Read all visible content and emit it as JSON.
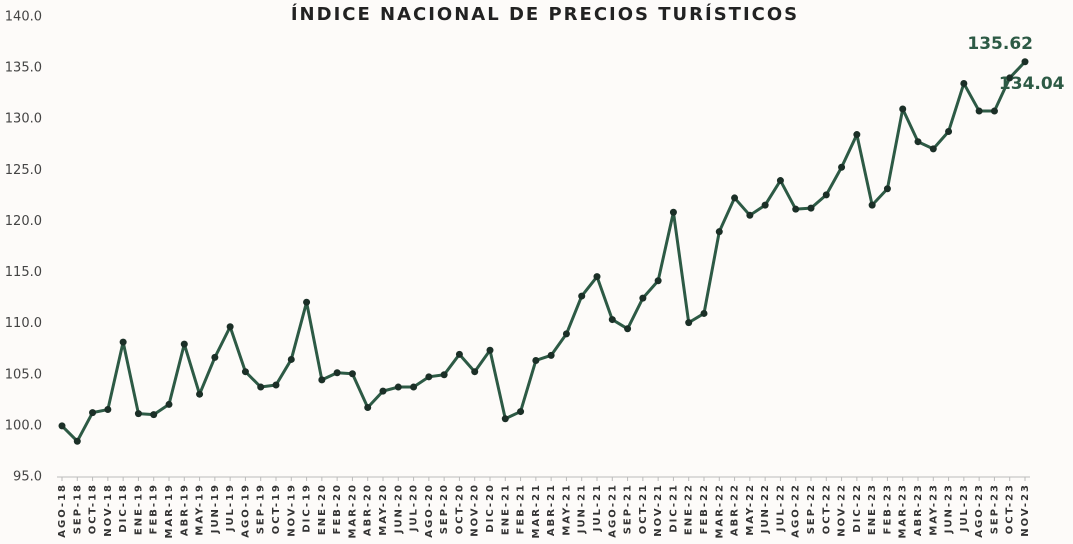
{
  "chart_data": {
    "type": "line",
    "title": "ÍNDICE NACIONAL DE PRECIOS TURÍSTICOS",
    "categories": [
      "AGO-18",
      "SEP-18",
      "OCT-18",
      "NOV-18",
      "DIC-18",
      "ENE-19",
      "FEB-19",
      "MAR-19",
      "ABR-19",
      "MAY-19",
      "JUN-19",
      "JUL-19",
      "AGO-19",
      "SEP-19",
      "OCT-19",
      "NOV-19",
      "DIC-19",
      "ENE-20",
      "FEB-20",
      "MAR-20",
      "ABR-20",
      "MAY-20",
      "JUN-20",
      "JUL-20",
      "AGO-20",
      "SEP-20",
      "OCT-20",
      "NOV-20",
      "DIC-20",
      "ENE-21",
      "FEB-21",
      "MAR-21",
      "ABR-21",
      "MAY-21",
      "JUN-21",
      "JUL-21",
      "AGO-21",
      "SEP-21",
      "OCT-21",
      "NOV-21",
      "DIC-21",
      "ENE-22",
      "FEB-22",
      "MAR-22",
      "ABR-22",
      "MAY-22",
      "JUN-22",
      "JUL-22",
      "AGO-22",
      "SEP-22",
      "OCT-22",
      "NOV-22",
      "DIC-22",
      "ENE-23",
      "FEB-23",
      "MAR-23",
      "ABR-23",
      "MAY-23",
      "JUN-23",
      "JUL-23",
      "AGO-23",
      "SEP-23",
      "OCT-23",
      "NOV-23"
    ],
    "series": [
      {
        "color": "#2d5a45",
        "values": [
          100.0,
          98.5,
          101.3,
          101.6,
          108.2,
          101.2,
          101.1,
          102.1,
          108.0,
          103.1,
          106.7,
          109.7,
          105.3,
          103.8,
          104.0,
          106.5,
          112.1,
          104.5,
          105.2,
          105.1,
          101.8,
          103.4,
          103.8,
          103.8,
          104.8,
          105.0,
          107.0,
          105.3,
          107.4,
          100.7,
          101.4,
          106.4,
          106.9,
          109.0,
          112.7,
          114.6,
          110.4,
          109.5,
          112.5,
          114.2,
          120.9,
          110.1,
          111.0,
          119.0,
          122.3,
          120.6,
          121.6,
          124.0,
          121.2,
          121.3,
          122.6,
          125.3,
          128.5,
          121.6,
          123.2,
          131.0,
          127.8,
          127.1,
          128.8,
          133.5,
          130.8,
          130.8,
          134.04,
          135.62
        ]
      }
    ],
    "labeled_points": [
      62,
      63
    ],
    "ylim": [
      95,
      140
    ],
    "yticks": [
      {
        "value": 95,
        "label": "95.0"
      },
      {
        "value": 100,
        "label": "100.0"
      },
      {
        "value": 105,
        "label": "105.0"
      },
      {
        "value": 110,
        "label": "110.0"
      },
      {
        "value": 115,
        "label": "115.0"
      },
      {
        "value": 120,
        "label": "120.0"
      },
      {
        "value": 125,
        "label": "125.0"
      },
      {
        "value": 130,
        "label": "130.0"
      },
      {
        "value": 135,
        "label": "135.0"
      },
      {
        "value": 140,
        "label": "140.0"
      }
    ],
    "grid": false
  }
}
